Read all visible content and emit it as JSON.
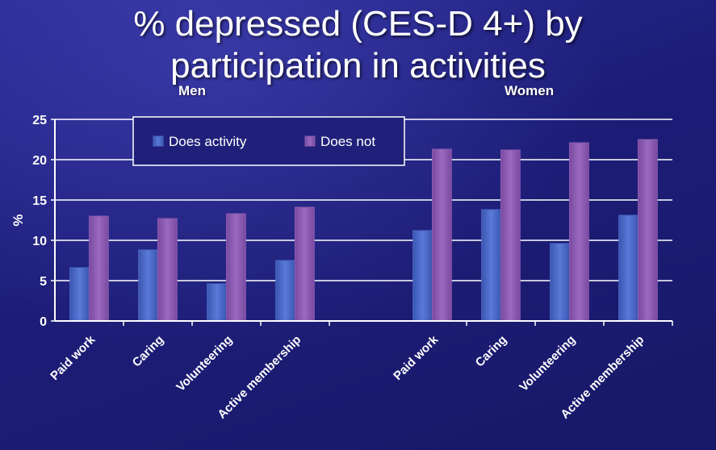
{
  "title": {
    "line1": "% depressed (CES-D 4+) by",
    "line2": "participation in activities"
  },
  "group_labels": {
    "men": "Men",
    "women": "Women"
  },
  "chart_data": {
    "type": "bar",
    "title": "% depressed (CES-D 4+) by participation in activities",
    "xlabel": "",
    "ylabel": "%",
    "ylim": [
      0,
      25
    ],
    "yticks": [
      "0",
      "5",
      "10",
      "15",
      "20",
      "25"
    ],
    "grid": true,
    "legend_position": "top-left",
    "groups": [
      "Men",
      "Women"
    ],
    "categories": [
      "Paid work",
      "Caring",
      "Volunteering",
      "Active membership",
      "Paid work",
      "Caring",
      "Volunteering",
      "Active membership"
    ],
    "series": [
      {
        "name": "Does activity",
        "color": "#4a6ac8",
        "values": [
          6.6,
          8.8,
          4.6,
          7.5,
          11.2,
          13.8,
          9.6,
          13.1
        ]
      },
      {
        "name": "Does not",
        "color": "#8a5ab0",
        "values": [
          13.0,
          12.7,
          13.3,
          14.1,
          21.3,
          21.2,
          22.1,
          22.5
        ]
      }
    ]
  }
}
